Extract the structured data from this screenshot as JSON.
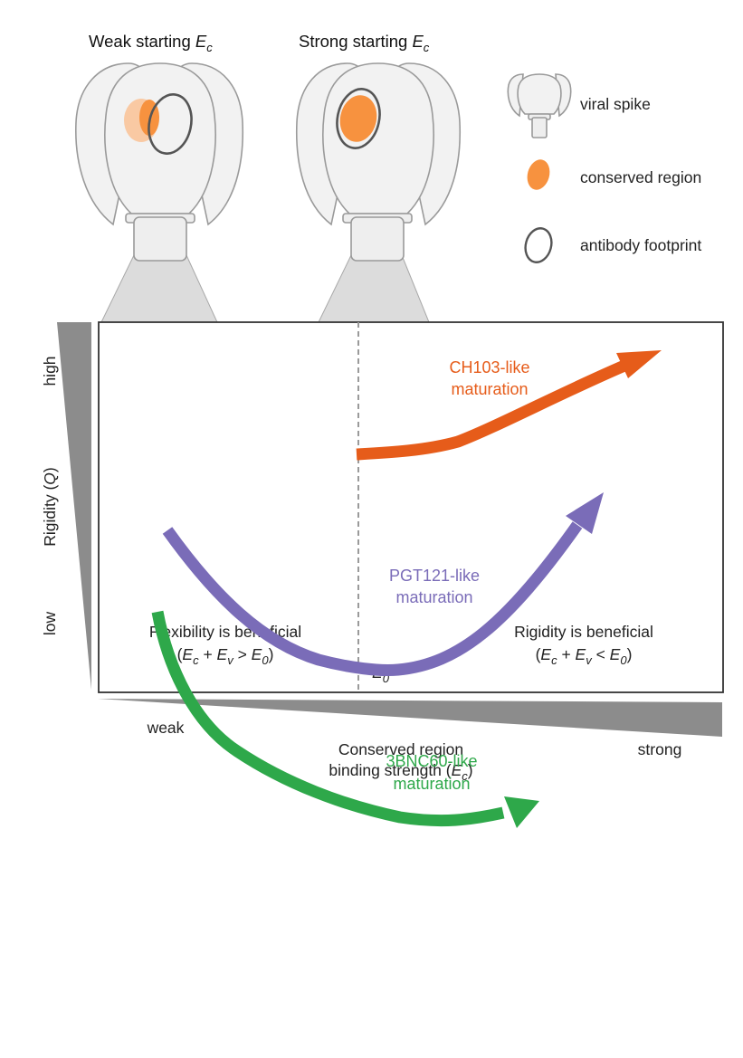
{
  "panels": {
    "weak": {
      "title": "Weak starting ",
      "title_sym": "E",
      "title_sub": "c"
    },
    "strong": {
      "title": "Strong starting ",
      "title_sym": "E",
      "title_sub": "c"
    }
  },
  "legend": {
    "spike": "viral spike",
    "conserved": "conserved region",
    "footprint": "antibody footprint"
  },
  "plot": {
    "y_axis": {
      "label": "Rigidity (",
      "label_sym": "Q",
      "label_end": ")",
      "high": "high",
      "low": "low"
    },
    "x_axis": {
      "weak": "weak",
      "strong": "strong",
      "label_line1": "Conserved region",
      "label_line2": "binding strength (",
      "label_sym": "E",
      "label_sub": "c",
      "label_end": ")"
    },
    "threshold": {
      "sym": "E",
      "sub": "0"
    },
    "regions": {
      "left": {
        "title": "Flexibility is beneficial",
        "formula": "(Ec + Ev > E0)"
      },
      "right": {
        "title": "Rigidity is beneficial",
        "formula": "(Ec + Ev < E0)"
      }
    },
    "curves": [
      {
        "name": "CH103-like",
        "suffix": "maturation",
        "color": "#e65c1a"
      },
      {
        "name": "PGT121-like",
        "suffix": "maturation",
        "color": "#7a6cb8"
      },
      {
        "name": "3BNC60-like",
        "suffix": "maturation",
        "color": "#2ea84a"
      }
    ]
  },
  "colors": {
    "conserved_region": "#f7923f",
    "conserved_region_faded": "#f9c9a3",
    "footprint_outline": "#555555",
    "axis_wedge": "#8c8c8c"
  }
}
